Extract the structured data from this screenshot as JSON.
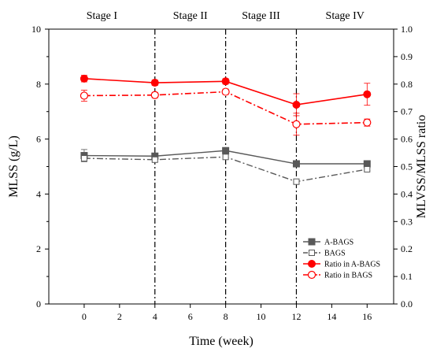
{
  "chart_data": {
    "type": "line",
    "stages": [
      "Stage I",
      "Stage II",
      "Stage III",
      "Stage IV"
    ],
    "stage_boundaries": [
      4,
      8,
      12
    ],
    "x": [
      0,
      4,
      8,
      12,
      16
    ],
    "xlabel": "Time (week)",
    "xlim": [
      -2,
      17.5
    ],
    "xticks": [
      0,
      2,
      4,
      6,
      8,
      10,
      12,
      14,
      16
    ],
    "ylabel": "MLSS (g/L)",
    "ylim": [
      0,
      10
    ],
    "yticks": [
      0,
      2,
      4,
      6,
      8,
      10
    ],
    "y2label": "MLVSS/MLSS ratio",
    "y2lim": [
      0.0,
      1.0
    ],
    "y2ticks": [
      "0.0",
      "0.1",
      "0.2",
      "0.3",
      "0.4",
      "0.5",
      "0.6",
      "0.7",
      "0.8",
      "0.9",
      "1.0"
    ],
    "legend_position": "bottom-right",
    "series": [
      {
        "name": "A-BAGS",
        "axis": "left",
        "values": [
          5.4,
          5.38,
          5.58,
          5.1,
          5.1
        ],
        "errors": [
          0.22,
          0.08,
          0.1,
          0.05,
          0.03
        ],
        "color": "#595959",
        "marker": "square-filled",
        "dash": "solid"
      },
      {
        "name": "BAGS",
        "axis": "left",
        "values": [
          5.3,
          5.25,
          5.35,
          4.45,
          4.9
        ],
        "errors": [
          0.12,
          0.07,
          0.08,
          0.08,
          0.05
        ],
        "color": "#595959",
        "marker": "square-open",
        "dash": "dashdot"
      },
      {
        "name": "Ratio in A-BAGS",
        "axis": "right",
        "values": [
          0.82,
          0.805,
          0.81,
          0.725,
          0.763
        ],
        "errors": [
          0.012,
          0.01,
          0.01,
          0.04,
          0.04
        ],
        "color": "#ff0000",
        "marker": "circle-filled",
        "dash": "solid"
      },
      {
        "name": "Ratio in BAGS",
        "axis": "right",
        "values": [
          0.758,
          0.76,
          0.772,
          0.654,
          0.66
        ],
        "errors": [
          0.02,
          0.01,
          0.01,
          0.04,
          0.013
        ],
        "color": "#ff0000",
        "marker": "circle-open",
        "dash": "dashdot"
      }
    ]
  }
}
